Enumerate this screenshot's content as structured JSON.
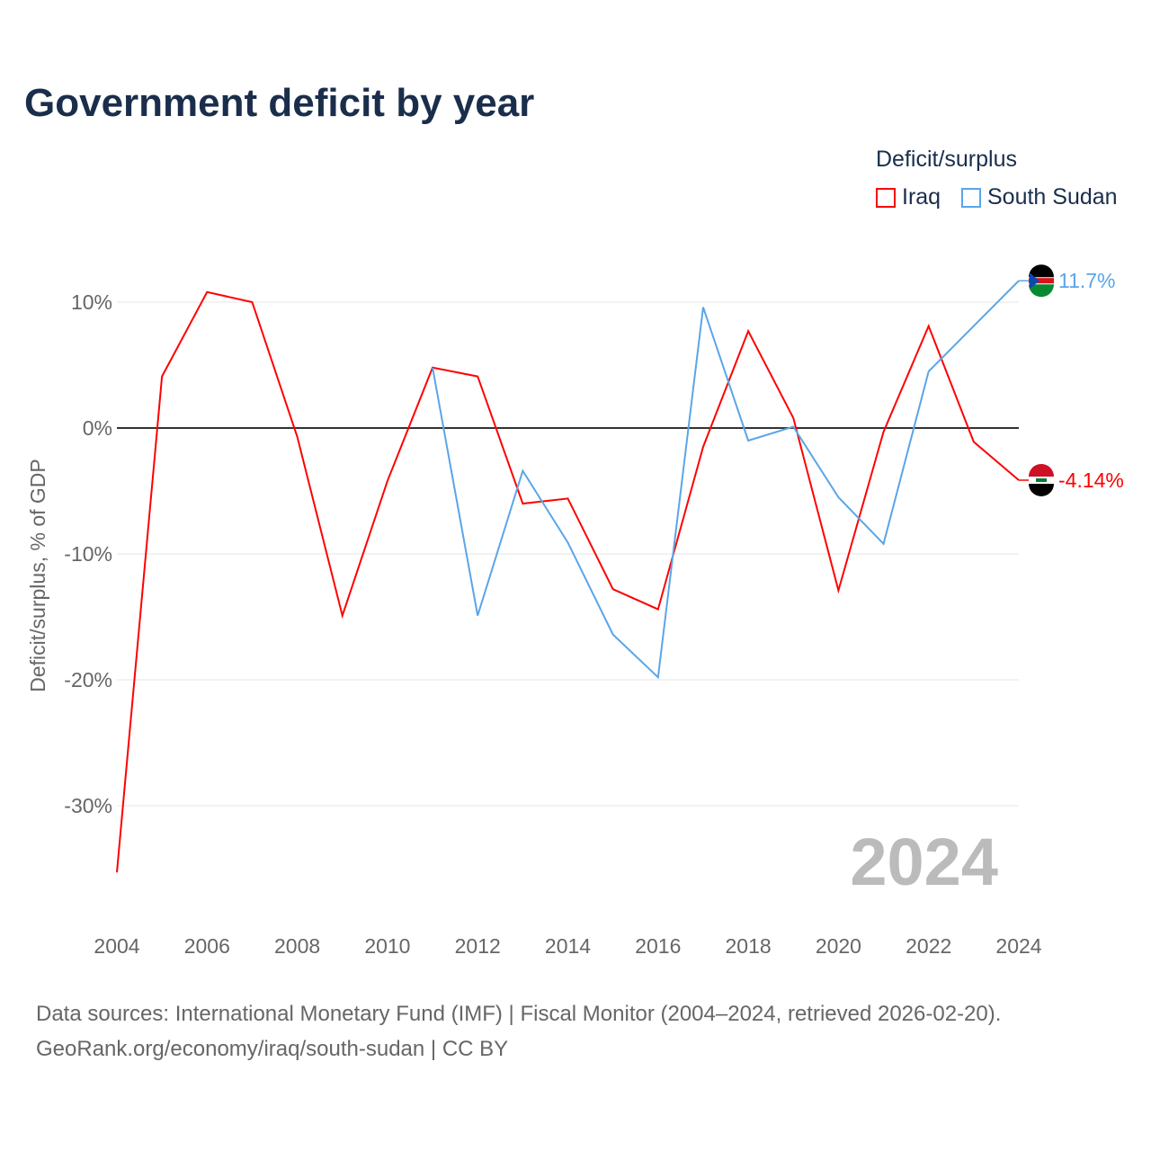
{
  "chart_data": {
    "type": "line",
    "title": "Government deficit by year",
    "ylabel": "Deficit/surplus, % of GDP",
    "xlabel": "",
    "ylim": [
      -36,
      12
    ],
    "yticks": [
      10,
      0,
      -10,
      -20,
      -30
    ],
    "ytick_labels": [
      "10%",
      "0%",
      "-10%",
      "-20%",
      "-30%"
    ],
    "xticks": [
      2004,
      2006,
      2008,
      2010,
      2012,
      2014,
      2016,
      2018,
      2020,
      2022,
      2024
    ],
    "legend_title": "Deficit/surplus",
    "legend_placement": "top-right",
    "watermark_year": "2024",
    "x": [
      2004,
      2005,
      2006,
      2007,
      2008,
      2009,
      2010,
      2011,
      2012,
      2013,
      2014,
      2015,
      2016,
      2017,
      2018,
      2019,
      2020,
      2021,
      2022,
      2023,
      2024
    ],
    "series": [
      {
        "name": "Iraq",
        "color": "#ff0000",
        "end_label": "-4.14%",
        "values": [
          -35.3,
          4.1,
          10.8,
          10.0,
          -0.7,
          -14.9,
          -4.2,
          4.8,
          4.1,
          -6.0,
          -5.6,
          -12.8,
          -14.4,
          -1.5,
          7.7,
          0.8,
          -12.9,
          -0.3,
          8.1,
          -1.1,
          -4.14
        ]
      },
      {
        "name": "South Sudan",
        "color": "#5aa5e8",
        "end_label": "11.7%",
        "values": [
          null,
          null,
          null,
          null,
          null,
          null,
          null,
          4.8,
          -14.9,
          -3.4,
          -9.1,
          -16.4,
          -19.8,
          9.6,
          -1.0,
          0.1,
          -5.5,
          -9.2,
          4.5,
          8.1,
          11.7
        ]
      }
    ]
  },
  "source": {
    "line1": "Data sources: International Monetary Fund (IMF) | Fiscal Monitor (2004–2024, retrieved 2026-02-20).",
    "line2": "GeoRank.org/economy/iraq/south-sudan | CC BY"
  }
}
